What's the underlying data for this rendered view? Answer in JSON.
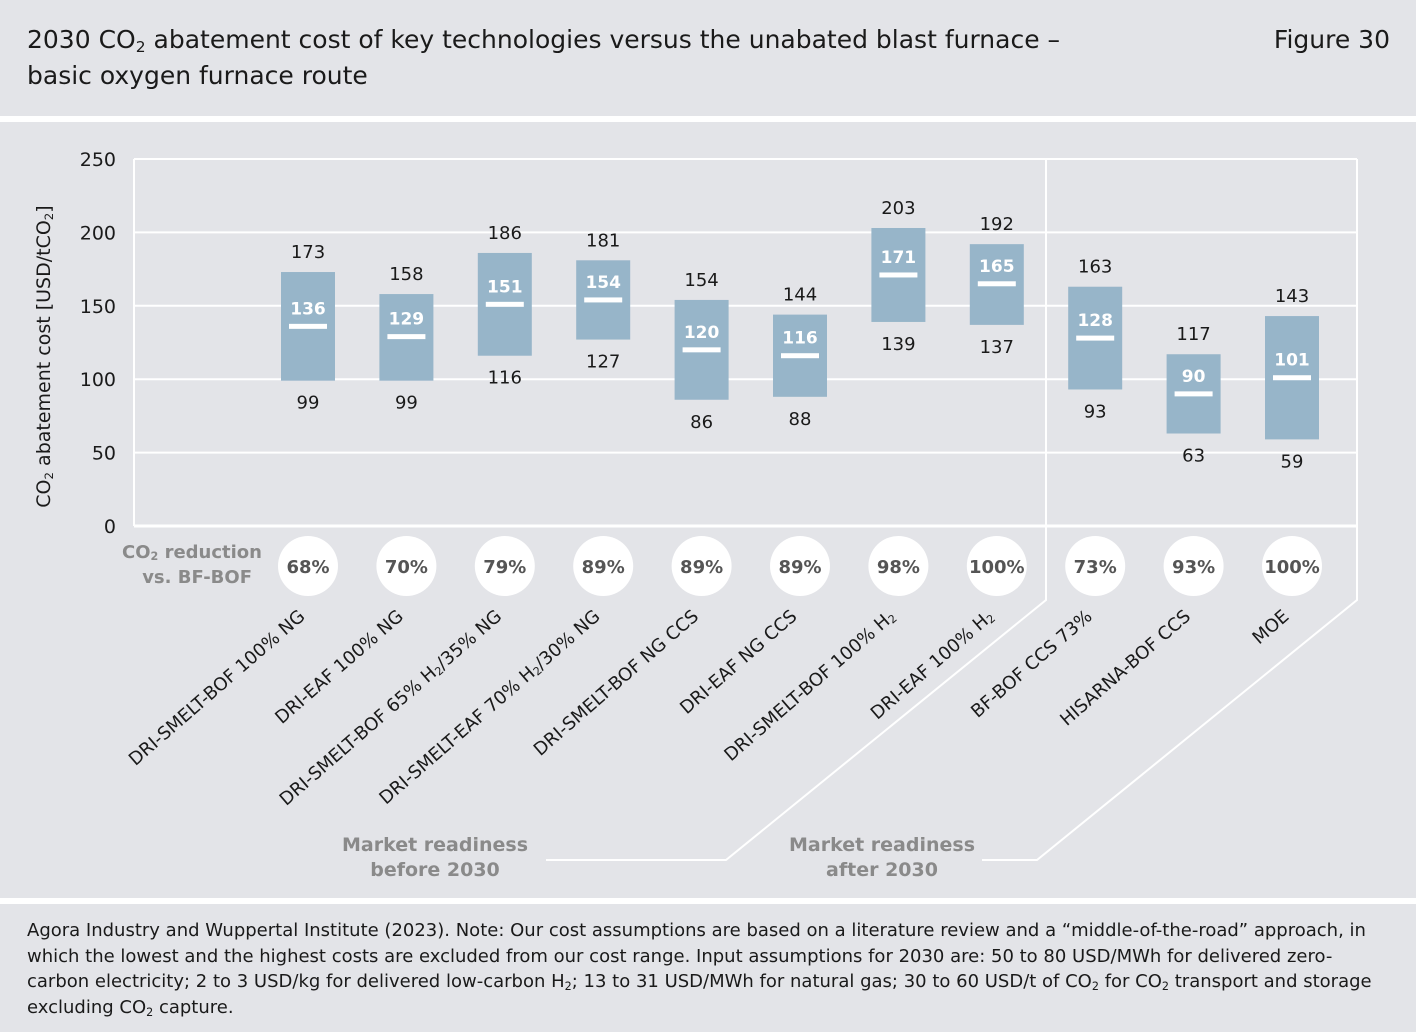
{
  "header": {
    "title_pre": "2030 CO",
    "title_sub": "2",
    "title_post": " abatement cost of key technologies versus the unabated blast furnace – basic oxygen furnace route",
    "figure_label": "Figure 30"
  },
  "chart_data": {
    "type": "range-bar",
    "ylabel": "CO₂ abatement cost [USD/tCO₂]",
    "ylim": [
      0,
      250
    ],
    "yticks": [
      0,
      50,
      100,
      150,
      200,
      250
    ],
    "grid": true,
    "categories": [
      "DRI-SMELT-BOF 100% NG",
      "DRI-EAF 100% NG",
      "DRI-SMELT-BOF 65% H₂/35% NG",
      "DRI-SMELT-EAF 70% H₂/30% NG",
      "DRI-SMELT-BOF NG CCS",
      "DRI-EAF NG CCS",
      "DRI-SMELT-BOF 100% H₂",
      "DRI-EAF 100% H₂",
      "BF-BOF CCS 73%",
      "HISARNA-BOF CCS",
      "MOE"
    ],
    "low": [
      99,
      99,
      116,
      127,
      86,
      88,
      139,
      137,
      93,
      63,
      59
    ],
    "mid": [
      136,
      129,
      151,
      154,
      120,
      116,
      171,
      165,
      128,
      90,
      101
    ],
    "high": [
      173,
      158,
      186,
      181,
      154,
      144,
      203,
      192,
      163,
      117,
      143
    ],
    "co2_reduction_label": [
      "CO₂ reduction",
      "vs. BF-BOF"
    ],
    "co2_reduction": [
      "68%",
      "70%",
      "79%",
      "89%",
      "89%",
      "89%",
      "98%",
      "100%",
      "73%",
      "93%",
      "100%"
    ],
    "groups": [
      {
        "label": [
          "Market readiness",
          "before 2030"
        ],
        "count": 8
      },
      {
        "label": [
          "Market readiness",
          "after 2030"
        ],
        "count": 3
      }
    ],
    "colors": {
      "bar": "#97b5c9",
      "mid_marker": "#ffffff",
      "grid": "#ffffff",
      "panel": "#e3e4e8",
      "circle": "#ffffff",
      "group_text": "#8a8a8a"
    }
  },
  "footer": {
    "source_html": "Agora Industry and Wuppertal Institute (2023). Note: Our cost assumptions are based on a literature review and a “middle-of-the-road” approach, in which the lowest and the highest costs are excluded from our cost range. Input assumptions for 2030 are: 50 to 80 USD/MWh for delivered zero-carbon electricity; 2 to 3 USD/kg for delivered low-carbon H<sub>2</sub>; 13 to 31 USD/MWh for natural gas; 30 to 60 USD/t of CO<sub>2</sub> for CO<sub>2</sub> transport and storage excluding CO<sub>2</sub> capture."
  }
}
